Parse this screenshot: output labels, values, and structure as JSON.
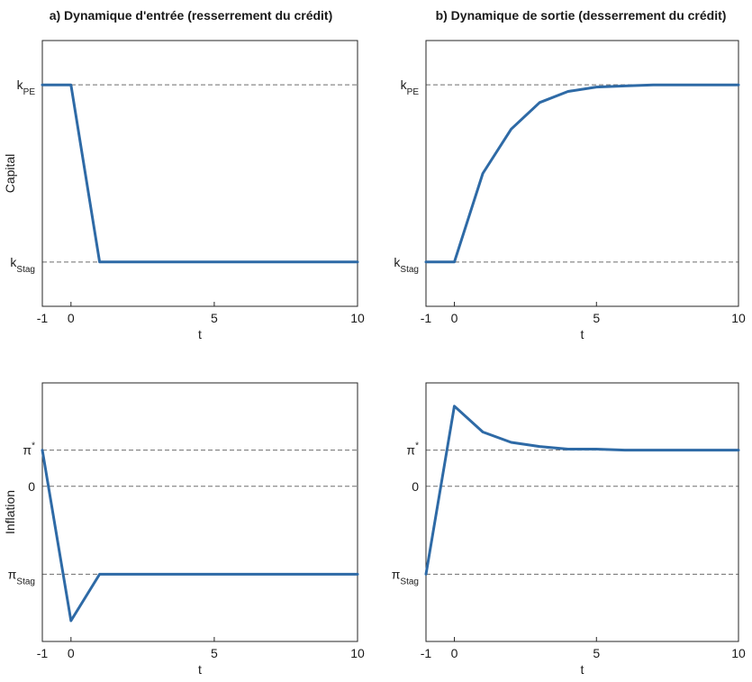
{
  "chart_data": [
    {
      "type": "line",
      "title": "a) Dynamique d'entrée (resserrement du crédit)",
      "xlabel": "t",
      "ylabel": "Capital",
      "xlim": [
        -1,
        10
      ],
      "ylim": [
        0,
        1.2
      ],
      "x_ticks": [
        "-1",
        "0",
        "5",
        "10"
      ],
      "y_ticks": [
        {
          "value": 1,
          "base": "k",
          "sub": "PE",
          "sup": ""
        },
        {
          "value": 0.2,
          "base": "k",
          "sub": "Stag",
          "sup": ""
        }
      ],
      "reference_lines": [
        1,
        0.2
      ],
      "x": [
        -1,
        0,
        1,
        2,
        3,
        4,
        5,
        6,
        7,
        8,
        9,
        10
      ],
      "y": [
        1,
        1,
        0.2,
        0.2,
        0.2,
        0.2,
        0.2,
        0.2,
        0.2,
        0.2,
        0.2,
        0.2
      ]
    },
    {
      "type": "line",
      "title": "b) Dynamique de sortie (desserrement du crédit)",
      "xlabel": "t",
      "ylabel": "",
      "xlim": [
        -1,
        10
      ],
      "ylim": [
        0,
        1.2
      ],
      "x_ticks": [
        "-1",
        "0",
        "5",
        "10"
      ],
      "y_ticks": [
        {
          "value": 1,
          "base": "k",
          "sub": "PE",
          "sup": ""
        },
        {
          "value": 0.2,
          "base": "k",
          "sub": "Stag",
          "sup": ""
        }
      ],
      "reference_lines": [
        1,
        0.2
      ],
      "x": [
        -1,
        0,
        1,
        2,
        3,
        4,
        5,
        6,
        7,
        8,
        9,
        10
      ],
      "y": [
        0.2,
        0.2,
        0.6,
        0.8,
        0.92,
        0.97,
        0.99,
        0.995,
        1,
        1,
        1,
        1
      ]
    },
    {
      "type": "line",
      "title": "",
      "xlabel": "t",
      "ylabel": "Inflation",
      "xlim": [
        -1,
        10
      ],
      "ylim": [
        -3,
        2
      ],
      "x_ticks": [
        "-1",
        "0",
        "5",
        "10"
      ],
      "y_ticks": [
        {
          "value": 0.7,
          "base": "π",
          "sub": "",
          "sup": "*"
        },
        {
          "value": 0,
          "base": "0",
          "sub": "",
          "sup": ""
        },
        {
          "value": -1.7,
          "base": "π",
          "sub": "Stag",
          "sup": ""
        }
      ],
      "reference_lines": [
        0.7,
        0,
        -1.7
      ],
      "x": [
        -1,
        0,
        1,
        2,
        3,
        4,
        5,
        6,
        7,
        8,
        9,
        10
      ],
      "y": [
        0.7,
        -2.6,
        -1.7,
        -1.7,
        -1.7,
        -1.7,
        -1.7,
        -1.7,
        -1.7,
        -1.7,
        -1.7,
        -1.7
      ]
    },
    {
      "type": "line",
      "title": "",
      "xlabel": "t",
      "ylabel": "",
      "xlim": [
        -1,
        10
      ],
      "ylim": [
        -3,
        2
      ],
      "x_ticks": [
        "-1",
        "0",
        "5",
        "10"
      ],
      "y_ticks": [
        {
          "value": 0.7,
          "base": "π",
          "sub": "",
          "sup": "*"
        },
        {
          "value": 0,
          "base": "0",
          "sub": "",
          "sup": ""
        },
        {
          "value": -1.7,
          "base": "π",
          "sub": "Stag",
          "sup": ""
        }
      ],
      "reference_lines": [
        0.7,
        0,
        -1.7
      ],
      "x": [
        -1,
        0,
        1,
        2,
        3,
        4,
        5,
        6,
        7,
        8,
        9,
        10
      ],
      "y": [
        -1.7,
        1.55,
        1.05,
        0.85,
        0.77,
        0.72,
        0.72,
        0.7,
        0.7,
        0.7,
        0.7,
        0.7
      ]
    }
  ]
}
